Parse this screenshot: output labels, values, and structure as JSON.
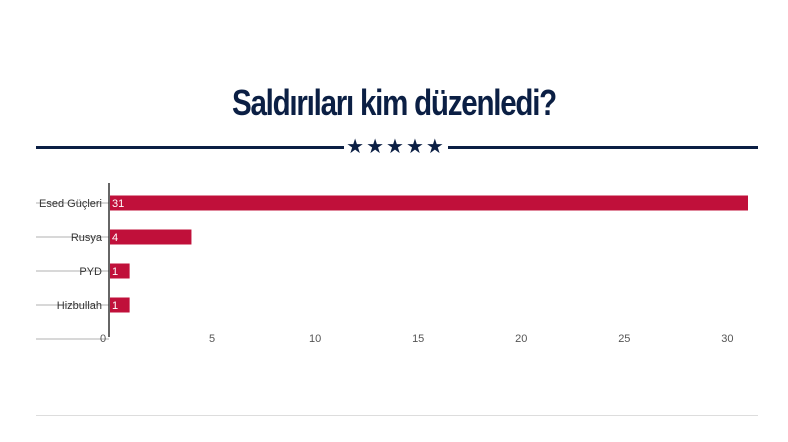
{
  "chart_data": {
    "type": "bar",
    "orientation": "horizontal",
    "title": "Saldırıları kim düzenledi?",
    "categories": [
      "Esed Güçleri",
      "Rusya",
      "PYD",
      "Hizbullah"
    ],
    "values": [
      31,
      4,
      1,
      1
    ],
    "data_labels": [
      "31",
      "4",
      "1",
      "1"
    ],
    "xticks": [
      "0",
      "5",
      "10",
      "15",
      "20",
      "25",
      "30"
    ],
    "xlim": [
      0,
      31
    ],
    "grid": false,
    "bar_color": "#c0103a"
  },
  "decor": {
    "stars": "★★★★★"
  },
  "colors": {
    "title": "#0b1f44",
    "bar": "#c0103a",
    "axis": "#333333"
  }
}
